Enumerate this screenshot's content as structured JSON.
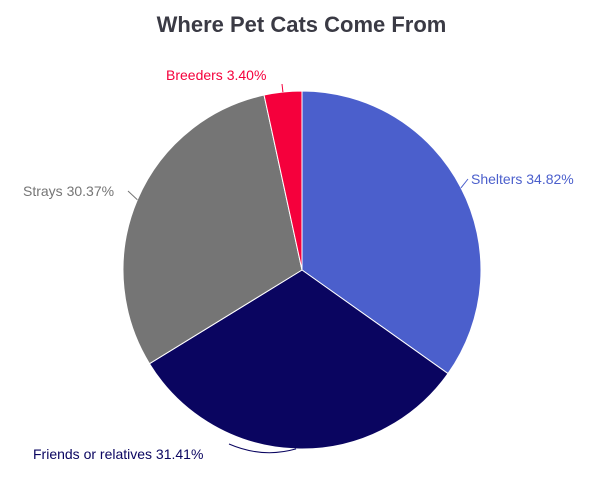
{
  "chart_data": {
    "type": "pie",
    "title": "Where Pet Cats Come From",
    "slices": [
      {
        "label": "Shelters",
        "value": 34.82,
        "value_text": "34.82%",
        "color": "#4b5fcc"
      },
      {
        "label": "Friends or relatives",
        "value": 31.41,
        "value_text": "31.41%",
        "color": "#0a0560"
      },
      {
        "label": "Strays",
        "value": 30.37,
        "value_text": "30.37%",
        "color": "#757575"
      },
      {
        "label": "Breeders",
        "value": 3.4,
        "value_text": "3.40%",
        "color": "#f5003c"
      }
    ],
    "legend": "none"
  }
}
